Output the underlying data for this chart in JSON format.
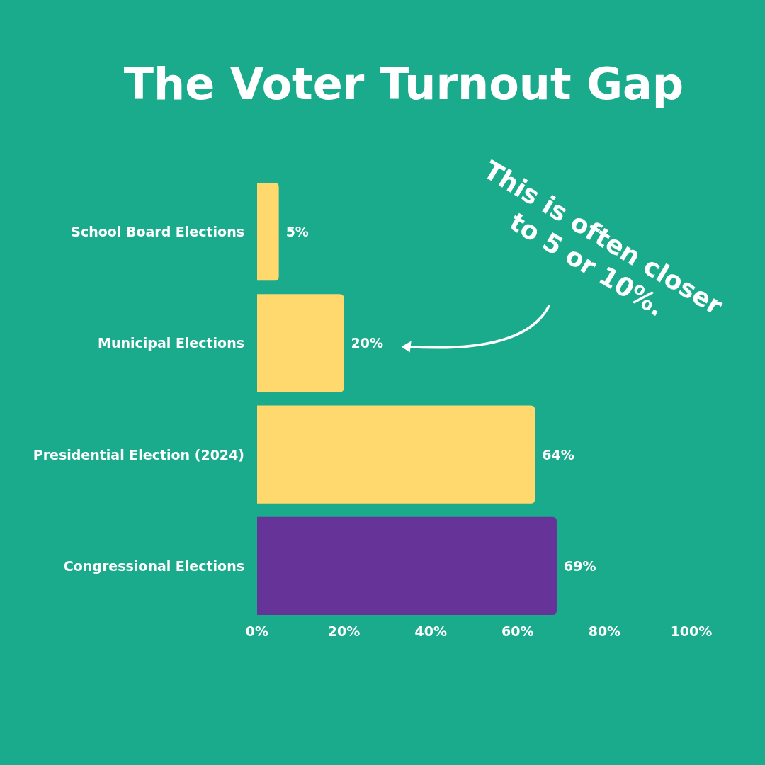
{
  "chart_data": {
    "type": "bar",
    "orientation": "horizontal",
    "title": "The Voter Turnout Gap",
    "categories": [
      "School Board Elections",
      "Municipal Elections",
      "Presidential Election (2024)",
      "Congressional Elections"
    ],
    "values": [
      5,
      20,
      64,
      69
    ],
    "colors": [
      "#ffd86e",
      "#ffd86e",
      "#ffd86e",
      "#663399"
    ],
    "value_labels": [
      "5%",
      "20%",
      "64%",
      "69%"
    ],
    "xlim": [
      0,
      100
    ],
    "xticks": [
      {
        "value": 0,
        "label": "0%"
      },
      {
        "value": 20,
        "label": "20%"
      },
      {
        "value": 40,
        "label": "40%"
      },
      {
        "value": 60,
        "label": "60%"
      },
      {
        "value": 80,
        "label": "80%"
      },
      {
        "value": 100,
        "label": "100%"
      }
    ],
    "grid": false,
    "annotations": [
      "This is often closer to 5 or 10%."
    ]
  }
}
